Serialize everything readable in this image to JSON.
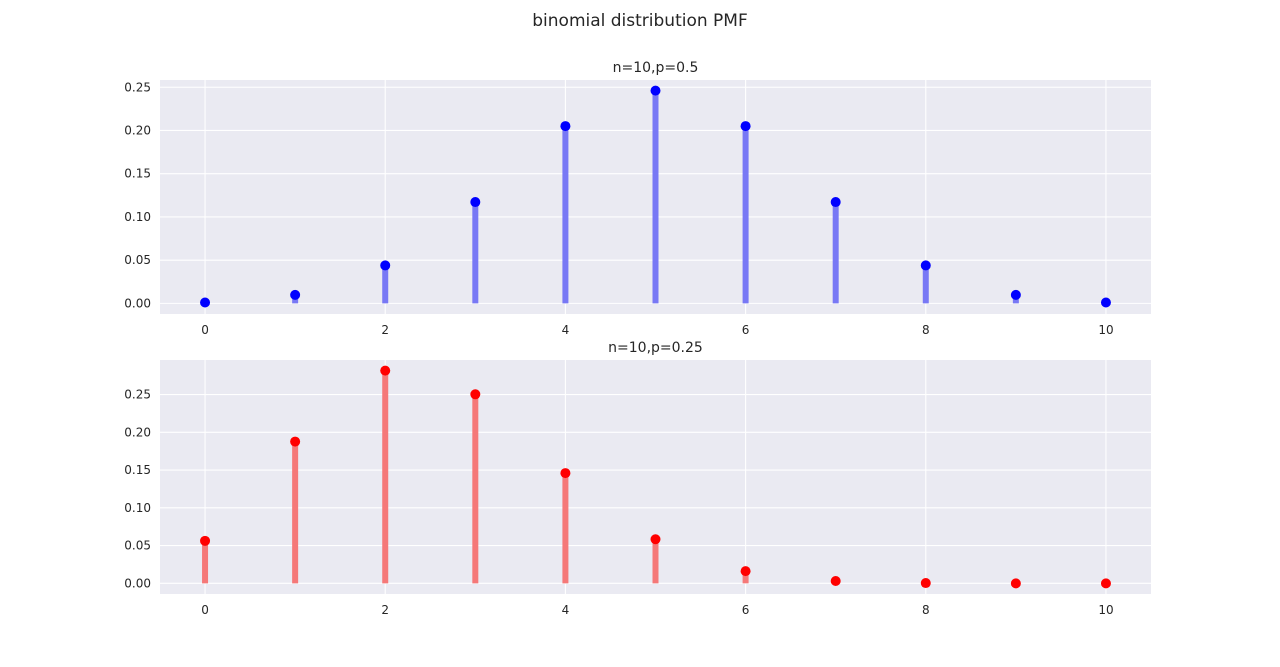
{
  "figure": {
    "title": "binomial distribution PMF"
  },
  "chart_data": [
    {
      "type": "bar",
      "title": "n=10,p=0.5",
      "xlabel": "",
      "ylabel": "",
      "x": [
        0,
        1,
        2,
        3,
        4,
        5,
        6,
        7,
        8,
        9,
        10
      ],
      "values": [
        0.001,
        0.0098,
        0.0439,
        0.1172,
        0.2051,
        0.2461,
        0.2051,
        0.1172,
        0.0439,
        0.0098,
        0.001
      ],
      "xlim": [
        -0.5,
        10.5
      ],
      "ylim": [
        -0.0123,
        0.2584
      ],
      "xticks": [
        0,
        2,
        4,
        6,
        8,
        10
      ],
      "yticks": [
        0.0,
        0.05,
        0.1,
        0.15,
        0.2,
        0.25
      ],
      "ytick_labels": [
        "0.00",
        "0.05",
        "0.10",
        "0.15",
        "0.20",
        "0.25"
      ],
      "grid": true,
      "marker_color": "#0000ff",
      "stem_color": "#7878f5"
    },
    {
      "type": "bar",
      "title": "n=10,p=0.25",
      "xlabel": "",
      "ylabel": "",
      "x": [
        0,
        1,
        2,
        3,
        4,
        5,
        6,
        7,
        8,
        9,
        10
      ],
      "values": [
        0.0563,
        0.1877,
        0.2816,
        0.2503,
        0.146,
        0.0584,
        0.0162,
        0.0031,
        0.0004,
        0.0,
        0.0
      ],
      "xlim": [
        -0.5,
        10.5
      ],
      "ylim": [
        -0.0141,
        0.2957
      ],
      "xticks": [
        0,
        2,
        4,
        6,
        8,
        10
      ],
      "yticks": [
        0.0,
        0.05,
        0.1,
        0.15,
        0.2,
        0.25
      ],
      "ytick_labels": [
        "0.00",
        "0.05",
        "0.10",
        "0.15",
        "0.20",
        "0.25"
      ],
      "grid": true,
      "marker_color": "#ff0000",
      "stem_color": "#f57878"
    }
  ]
}
